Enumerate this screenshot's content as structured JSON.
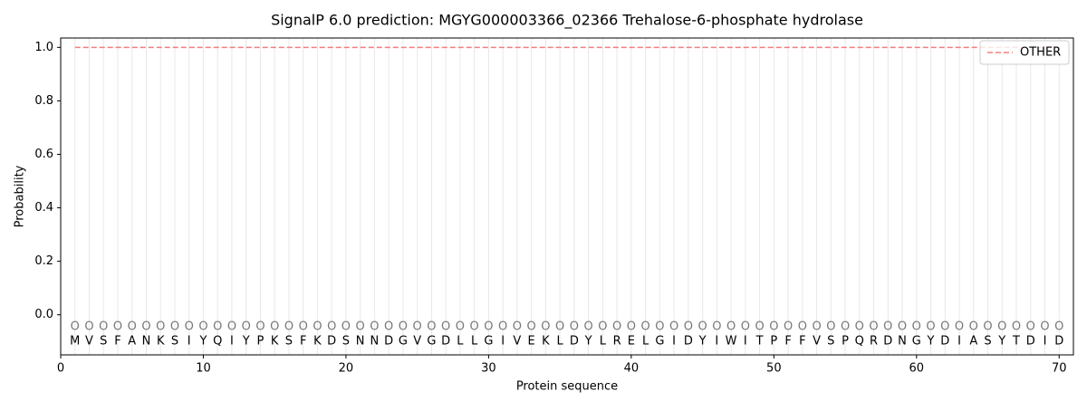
{
  "chart_data": {
    "type": "line",
    "title": "SignalP 6.0 prediction: MGYG000003366_02366 Trehalose-6-phosphate hydrolase",
    "xlabel": "Protein sequence",
    "ylabel": "Probability",
    "x": [
      1,
      2,
      3,
      4,
      5,
      6,
      7,
      8,
      9,
      10,
      11,
      12,
      13,
      14,
      15,
      16,
      17,
      18,
      19,
      20,
      21,
      22,
      23,
      24,
      25,
      26,
      27,
      28,
      29,
      30,
      31,
      32,
      33,
      34,
      35,
      36,
      37,
      38,
      39,
      40,
      41,
      42,
      43,
      44,
      45,
      46,
      47,
      48,
      49,
      50,
      51,
      52,
      53,
      54,
      55,
      56,
      57,
      58,
      59,
      60,
      61,
      62,
      63,
      64,
      65,
      66,
      67,
      68,
      69,
      70
    ],
    "sequence": [
      "M",
      "V",
      "S",
      "F",
      "A",
      "N",
      "K",
      "S",
      "I",
      "Y",
      "Q",
      "I",
      "Y",
      "P",
      "K",
      "S",
      "F",
      "K",
      "D",
      "S",
      "N",
      "N",
      "D",
      "G",
      "V",
      "G",
      "D",
      "L",
      "L",
      "G",
      "I",
      "V",
      "E",
      "K",
      "L",
      "D",
      "Y",
      "L",
      "R",
      "E",
      "L",
      "G",
      "I",
      "D",
      "Y",
      "I",
      "W",
      "I",
      "T",
      "P",
      "F",
      "F",
      "V",
      "S",
      "P",
      "Q",
      "R",
      "D",
      "N",
      "G",
      "Y",
      "D",
      "I",
      "A",
      "S",
      "Y",
      "T",
      "D",
      "I",
      "D"
    ],
    "predictions": [
      "O",
      "O",
      "O",
      "O",
      "O",
      "O",
      "O",
      "O",
      "O",
      "O",
      "O",
      "O",
      "O",
      "O",
      "O",
      "O",
      "O",
      "O",
      "O",
      "O",
      "O",
      "O",
      "O",
      "O",
      "O",
      "O",
      "O",
      "O",
      "O",
      "O",
      "O",
      "O",
      "O",
      "O",
      "O",
      "O",
      "O",
      "O",
      "O",
      "O",
      "O",
      "O",
      "O",
      "O",
      "O",
      "O",
      "O",
      "O",
      "O",
      "O",
      "O",
      "O",
      "O",
      "O",
      "O",
      "O",
      "O",
      "O",
      "O",
      "O",
      "O",
      "O",
      "O",
      "O",
      "O",
      "O",
      "O",
      "O",
      "O",
      "O"
    ],
    "series": [
      {
        "name": "OTHER",
        "color": "#f08080",
        "dashed": true,
        "values": [
          1,
          1,
          1,
          1,
          1,
          1,
          1,
          1,
          1,
          1,
          1,
          1,
          1,
          1,
          1,
          1,
          1,
          1,
          1,
          1,
          1,
          1,
          1,
          1,
          1,
          1,
          1,
          1,
          1,
          1,
          1,
          1,
          1,
          1,
          1,
          1,
          1,
          1,
          1,
          1,
          1,
          1,
          1,
          1,
          1,
          1,
          1,
          1,
          1,
          1,
          1,
          1,
          1,
          1,
          1,
          1,
          1,
          1,
          1,
          1,
          1,
          1,
          1,
          1,
          1,
          1,
          1,
          1,
          1,
          1
        ]
      }
    ],
    "xlim": [
      0,
      71
    ],
    "ylim": [
      -0.15,
      1.035
    ],
    "xticks": [
      0,
      10,
      20,
      30,
      40,
      50,
      60,
      70
    ],
    "yticks": [
      {
        "value": 0,
        "label": "0.0"
      },
      0.2,
      0.4,
      0.6,
      0.8,
      {
        "value": 1,
        "label": "1.0"
      }
    ],
    "legend": "upper right"
  }
}
